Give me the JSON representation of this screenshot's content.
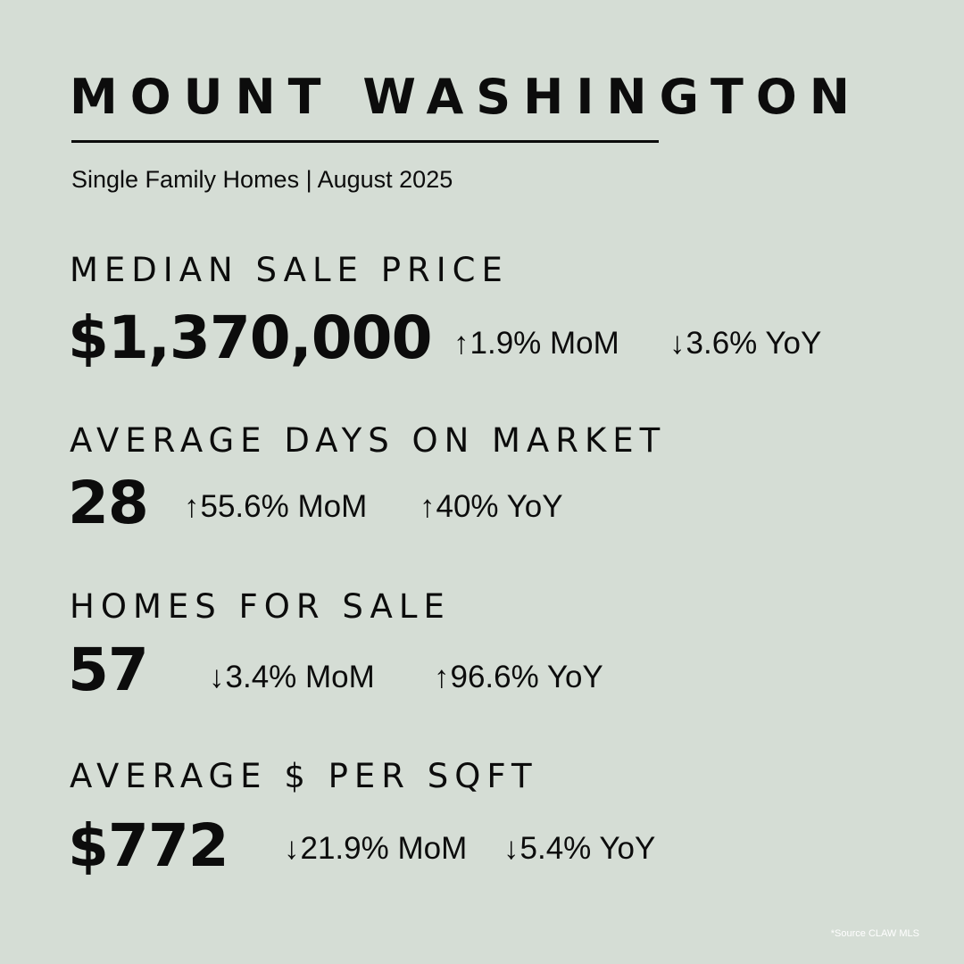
{
  "title": "MOUNT WASHINGTON",
  "subtitle": "Single Family Homes | August 2025",
  "stats": [
    {
      "label": "MEDIAN SALE PRICE",
      "value": "$1,370,000",
      "mom": {
        "arrow": "↑",
        "text": "1.9% MoM"
      },
      "yoy": {
        "arrow": "↓",
        "text": "3.6% YoY"
      }
    },
    {
      "label": "AVERAGE DAYS ON MARKET",
      "value": "28",
      "mom": {
        "arrow": "↑",
        "text": "55.6% MoM"
      },
      "yoy": {
        "arrow": "↑",
        "text": "40% YoY"
      }
    },
    {
      "label": "HOMES FOR SALE",
      "value": "57",
      "mom": {
        "arrow": "↓",
        "text": "3.4% MoM"
      },
      "yoy": {
        "arrow": "↑",
        "text": "96.6% YoY"
      }
    },
    {
      "label": "AVERAGE $ PER SQFT",
      "value": "$772",
      "mom": {
        "arrow": "↓",
        "text": "21.9% MoM"
      },
      "yoy": {
        "arrow": "↓",
        "text": "5.4% YoY"
      }
    }
  ],
  "source": "*Source CLAW MLS",
  "colors": {
    "background": "#d5ddd5",
    "text": "#0c0c0c",
    "source_text": "#ffffff"
  }
}
